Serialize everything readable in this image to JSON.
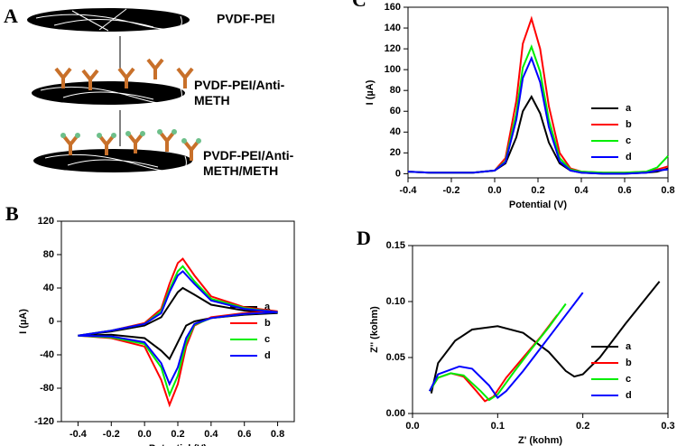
{
  "diagram": {
    "panel": "A",
    "labels": [
      "PVDF-PEI",
      "PVDF-PEI/Anti-\nMETH",
      "PVDF-PEI/Anti-\nMETH/METH"
    ]
  },
  "chart_data": [
    {
      "type": "line",
      "panel": "B",
      "xlabel": "Potential (V)",
      "ylabel": "I (µA)",
      "x": [
        -0.4,
        -0.2,
        0,
        0.1,
        0.15,
        0.2,
        0.23,
        0.3,
        0.4,
        0.6,
        0.8,
        0.6,
        0.4,
        0.3,
        0.25,
        0.2,
        0.15,
        0.1,
        0,
        -0.2,
        -0.4
      ],
      "xlim": [
        -0.5,
        0.9
      ],
      "xticks": [
        -0.4,
        -0.2,
        {
          "value": 0,
          "label": "0.0"
        },
        0.2,
        0.4,
        0.6,
        0.8
      ],
      "ylim": [
        -120,
        120
      ],
      "yticks": [
        -120,
        -80,
        -40,
        0,
        40,
        80,
        120
      ],
      "series": [
        {
          "name": "a",
          "color": "#000000",
          "values": [
            -17,
            -12,
            -5,
            5,
            20,
            35,
            40,
            32,
            20,
            13,
            10,
            8,
            4,
            0,
            -5,
            -25,
            -45,
            -35,
            -20,
            -16,
            -17
          ]
        },
        {
          "name": "b",
          "color": "#ff0000",
          "values": [
            -17,
            -11,
            -2,
            15,
            45,
            70,
            75,
            55,
            30,
            17,
            12,
            10,
            5,
            -5,
            -30,
            -75,
            -100,
            -70,
            -30,
            -20,
            -17
          ]
        },
        {
          "name": "c",
          "color": "#00ee00",
          "values": [
            -17,
            -11,
            -3,
            12,
            38,
            60,
            66,
            48,
            27,
            16,
            11,
            9,
            4,
            -4,
            -25,
            -65,
            -88,
            -55,
            -27,
            -19,
            -17
          ]
        },
        {
          "name": "d",
          "color": "#0000ff",
          "values": [
            -17,
            -11,
            -3,
            10,
            35,
            55,
            60,
            45,
            25,
            15,
            11,
            9,
            4,
            -3,
            -20,
            -55,
            -75,
            -50,
            -25,
            -18,
            -17
          ]
        }
      ]
    },
    {
      "type": "line",
      "panel": "C",
      "xlabel": "Potential (V)",
      "ylabel": "I (µA)",
      "x": [
        -0.4,
        -0.3,
        -0.2,
        -0.1,
        0,
        0.05,
        0.1,
        0.13,
        0.17,
        0.21,
        0.25,
        0.3,
        0.35,
        0.4,
        0.5,
        0.6,
        0.7,
        0.75,
        0.8
      ],
      "xlim": [
        -0.4,
        0.8
      ],
      "xticks": [
        -0.4,
        -0.2,
        {
          "value": 0,
          "label": "0.0"
        },
        0.2,
        0.4,
        0.6,
        0.8
      ],
      "ylim": [
        -4,
        160
      ],
      "yticks": [
        0,
        20,
        40,
        60,
        80,
        100,
        120,
        140,
        160
      ],
      "series": [
        {
          "name": "a",
          "color": "#000000",
          "values": [
            2,
            1,
            1,
            1,
            3,
            10,
            35,
            60,
            74,
            58,
            30,
            10,
            3,
            1,
            0,
            0,
            1,
            2,
            5
          ]
        },
        {
          "name": "b",
          "color": "#ff0000",
          "values": [
            2,
            1,
            1,
            1,
            3,
            15,
            70,
            125,
            149,
            120,
            65,
            20,
            5,
            2,
            1,
            1,
            2,
            4,
            7
          ]
        },
        {
          "name": "c",
          "color": "#00ee00",
          "values": [
            2,
            1,
            1,
            1,
            3,
            12,
            58,
            102,
            122,
            98,
            52,
            15,
            4,
            2,
            1,
            1,
            2,
            6,
            17
          ]
        },
        {
          "name": "d",
          "color": "#0000ff",
          "values": [
            2,
            1,
            1,
            1,
            3,
            11,
            52,
            92,
            111,
            88,
            45,
            12,
            3,
            1,
            0,
            0,
            1,
            3,
            4
          ]
        }
      ]
    },
    {
      "type": "line",
      "panel": "D",
      "xlabel": "Z' (kohm)",
      "ylabel": "Z'' (kohm)",
      "xlim": [
        0,
        0.3
      ],
      "xticks": [
        {
          "value": 0,
          "label": "0.0"
        },
        0.1,
        0.2,
        0.3
      ],
      "ylim": [
        0,
        0.15
      ],
      "yticks": [
        {
          "value": 0,
          "label": "0.00"
        },
        0.05,
        {
          "value": 0.1,
          "label": "0.10"
        },
        0.15
      ],
      "series": [
        {
          "name": "a",
          "color": "#000000",
          "x": [
            0.022,
            0.03,
            0.05,
            0.07,
            0.1,
            0.13,
            0.16,
            0.18,
            0.19,
            0.2,
            0.22,
            0.25,
            0.29
          ],
          "values": [
            0.018,
            0.045,
            0.065,
            0.075,
            0.078,
            0.072,
            0.055,
            0.038,
            0.033,
            0.035,
            0.05,
            0.08,
            0.118
          ]
        },
        {
          "name": "b",
          "color": "#ff0000",
          "x": [
            0.02,
            0.03,
            0.045,
            0.06,
            0.075,
            0.085,
            0.095,
            0.11,
            0.13,
            0.15,
            0.17
          ],
          "values": [
            0.02,
            0.032,
            0.036,
            0.033,
            0.02,
            0.011,
            0.015,
            0.032,
            0.05,
            0.068,
            0.088
          ]
        },
        {
          "name": "c",
          "color": "#00ee00",
          "x": [
            0.02,
            0.03,
            0.045,
            0.06,
            0.08,
            0.09,
            0.1,
            0.12,
            0.14,
            0.16,
            0.18
          ],
          "values": [
            0.02,
            0.032,
            0.036,
            0.034,
            0.02,
            0.012,
            0.017,
            0.038,
            0.058,
            0.077,
            0.098
          ]
        },
        {
          "name": "d",
          "color": "#0000ff",
          "x": [
            0.02,
            0.03,
            0.055,
            0.07,
            0.09,
            0.1,
            0.11,
            0.13,
            0.15,
            0.17,
            0.2
          ],
          "values": [
            0.02,
            0.035,
            0.042,
            0.04,
            0.025,
            0.014,
            0.02,
            0.038,
            0.058,
            0.078,
            0.108
          ]
        }
      ]
    }
  ]
}
